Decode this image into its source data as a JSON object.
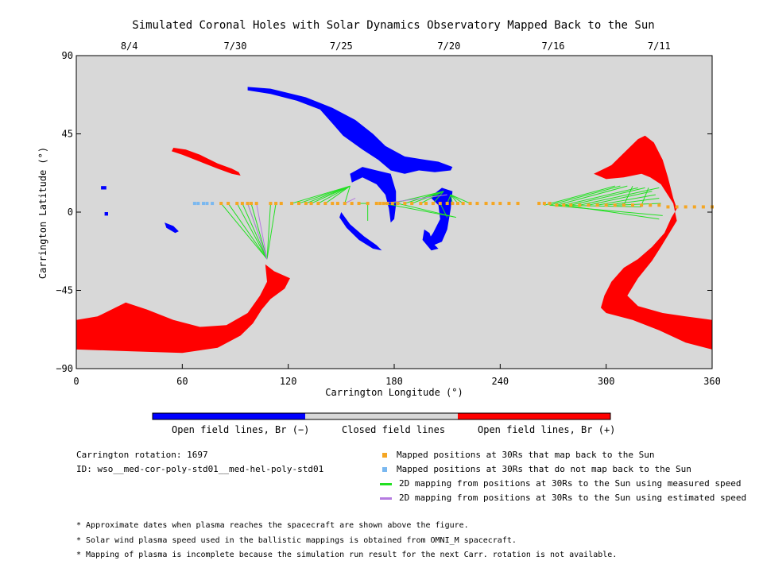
{
  "chart_data": {
    "type": "scatter",
    "title": "Simulated Coronal Holes with Solar Dynamics Observatory Mapped Back to the Sun",
    "xlabel": "Carrington Longitude (°)",
    "ylabel": "Carrington Latitude (°)",
    "xlim": [
      0,
      360
    ],
    "ylim": [
      -90,
      90
    ],
    "x_ticks": [
      0,
      60,
      120,
      180,
      240,
      300,
      360
    ],
    "y_ticks": [
      90,
      45,
      0,
      -45,
      -90
    ],
    "y_tick_labels": [
      "90",
      "45",
      "0",
      "−45",
      "−90"
    ],
    "top_axis_dates": [
      {
        "label": "8/4",
        "lon": 30
      },
      {
        "label": "7/30",
        "lon": 90
      },
      {
        "label": "7/25",
        "lon": 150
      },
      {
        "label": "7/20",
        "lon": 211
      },
      {
        "label": "7/16",
        "lon": 270
      },
      {
        "label": "7/11",
        "lon": 330
      }
    ],
    "background_color": "#d8d8d8",
    "region_colors": {
      "negative": "#0000ff",
      "positive": "#ff0000"
    },
    "regions": [
      {
        "polarity": "positive",
        "points": [
          [
            0,
            -62
          ],
          [
            12,
            -60
          ],
          [
            22,
            -55
          ],
          [
            28,
            -52
          ],
          [
            40,
            -56
          ],
          [
            55,
            -62
          ],
          [
            70,
            -66
          ],
          [
            85,
            -65
          ],
          [
            97,
            -58
          ],
          [
            104,
            -48
          ],
          [
            108,
            -40
          ],
          [
            107,
            -30
          ],
          [
            112,
            -34
          ],
          [
            121,
            -38
          ],
          [
            118,
            -44
          ],
          [
            110,
            -50
          ],
          [
            105,
            -56
          ],
          [
            100,
            -64
          ],
          [
            93,
            -71
          ],
          [
            80,
            -78
          ],
          [
            60,
            -81
          ],
          [
            30,
            -80
          ],
          [
            0,
            -79
          ]
        ]
      },
      {
        "polarity": "positive",
        "points": [
          [
            55,
            37
          ],
          [
            62,
            36
          ],
          [
            70,
            33
          ],
          [
            80,
            28
          ],
          [
            88,
            25
          ],
          [
            92,
            23
          ],
          [
            93,
            21
          ],
          [
            88,
            22
          ],
          [
            80,
            25
          ],
          [
            70,
            29
          ],
          [
            60,
            33
          ],
          [
            54,
            35
          ]
        ]
      },
      {
        "polarity": "positive",
        "points": [
          [
            293,
            22
          ],
          [
            303,
            27
          ],
          [
            311,
            35
          ],
          [
            318,
            42
          ],
          [
            322,
            44
          ],
          [
            327,
            40
          ],
          [
            332,
            30
          ],
          [
            335,
            20
          ],
          [
            338,
            8
          ],
          [
            340,
            2
          ],
          [
            337,
            -3
          ],
          [
            333,
            -12
          ],
          [
            326,
            -20
          ],
          [
            318,
            -27
          ],
          [
            310,
            -32
          ],
          [
            303,
            -40
          ],
          [
            299,
            -48
          ],
          [
            297,
            -55
          ],
          [
            300,
            -58
          ],
          [
            315,
            -62
          ],
          [
            330,
            -68
          ],
          [
            345,
            -75
          ],
          [
            360,
            -79
          ],
          [
            360,
            -62
          ],
          [
            345,
            -60
          ],
          [
            332,
            -58
          ],
          [
            318,
            -54
          ],
          [
            312,
            -48
          ],
          [
            318,
            -38
          ],
          [
            326,
            -28
          ],
          [
            331,
            -20
          ],
          [
            340,
            -5
          ],
          [
            338,
            5
          ],
          [
            331,
            16
          ],
          [
            325,
            20
          ],
          [
            320,
            22
          ],
          [
            310,
            20
          ],
          [
            300,
            19
          ]
        ]
      },
      {
        "polarity": "negative",
        "points": [
          [
            97,
            72
          ],
          [
            110,
            71
          ],
          [
            130,
            66
          ],
          [
            145,
            60
          ],
          [
            158,
            53
          ],
          [
            168,
            45
          ],
          [
            175,
            38
          ],
          [
            186,
            32
          ],
          [
            198,
            30
          ],
          [
            205,
            29
          ],
          [
            213,
            26
          ],
          [
            212,
            24
          ],
          [
            203,
            23
          ],
          [
            194,
            24
          ],
          [
            186,
            22
          ],
          [
            178,
            24
          ],
          [
            171,
            30
          ],
          [
            162,
            36
          ],
          [
            151,
            44
          ],
          [
            145,
            51
          ],
          [
            138,
            59
          ],
          [
            125,
            64
          ],
          [
            110,
            68
          ],
          [
            97,
            70
          ]
        ]
      },
      {
        "polarity": "negative",
        "points": [
          [
            155,
            22
          ],
          [
            162,
            26
          ],
          [
            170,
            24
          ],
          [
            178,
            22
          ],
          [
            181,
            12
          ],
          [
            181,
            4
          ],
          [
            180,
            -4
          ],
          [
            178,
            -6
          ],
          [
            177,
            2
          ],
          [
            175,
            10
          ],
          [
            170,
            16
          ],
          [
            162,
            20
          ],
          [
            156,
            17
          ]
        ]
      },
      {
        "polarity": "negative",
        "points": [
          [
            202,
            10
          ],
          [
            207,
            14
          ],
          [
            213,
            12
          ],
          [
            212,
            2
          ],
          [
            210,
            -10
          ],
          [
            207,
            -17
          ],
          [
            200,
            -20
          ],
          [
            198,
            -18
          ],
          [
            202,
            -12
          ],
          [
            206,
            -4
          ],
          [
            205,
            4
          ],
          [
            201,
            8
          ]
        ]
      },
      {
        "polarity": "negative",
        "points": [
          [
            150,
            0
          ],
          [
            155,
            -7
          ],
          [
            163,
            -14
          ],
          [
            170,
            -19
          ],
          [
            173,
            -22
          ],
          [
            168,
            -21
          ],
          [
            160,
            -16
          ],
          [
            153,
            -9
          ],
          [
            149,
            -3
          ]
        ]
      },
      {
        "polarity": "negative",
        "points": [
          [
            197,
            -10
          ],
          [
            200,
            -12
          ],
          [
            202,
            -18
          ],
          [
            205,
            -21
          ],
          [
            201,
            -22
          ],
          [
            196,
            -16
          ]
        ]
      },
      {
        "polarity": "negative",
        "points": [
          [
            14,
            15
          ],
          [
            17,
            15
          ],
          [
            17,
            13
          ],
          [
            14,
            13
          ]
        ]
      },
      {
        "polarity": "negative",
        "points": [
          [
            16,
            0
          ],
          [
            18,
            0
          ],
          [
            18,
            -2
          ],
          [
            16,
            -2
          ]
        ]
      },
      {
        "polarity": "negative",
        "points": [
          [
            50,
            -6
          ],
          [
            55,
            -8
          ],
          [
            58,
            -11
          ],
          [
            56,
            -12
          ],
          [
            51,
            -9
          ]
        ]
      }
    ],
    "series": [
      {
        "name": "Mapped positions at 30Rs that map back to the Sun",
        "color": "#f5a623",
        "x": [
          82,
          86,
          91,
          94,
          97,
          99,
          102,
          110,
          113,
          116,
          122,
          126,
          130,
          133,
          137,
          141,
          145,
          148,
          152,
          156,
          160,
          165,
          170,
          172,
          174,
          176,
          179,
          182,
          186,
          190,
          195,
          198,
          202,
          206,
          210,
          213,
          216,
          219,
          223,
          227,
          232,
          236,
          240,
          245,
          250,
          262,
          265,
          268,
          272,
          276,
          280,
          285,
          290,
          295,
          300,
          305,
          310,
          315,
          320,
          325,
          330,
          335,
          340,
          345,
          350,
          355,
          360
        ],
        "y": [
          5,
          5,
          5,
          5,
          5,
          5,
          5,
          5,
          5,
          5,
          5,
          5,
          5,
          5,
          5,
          5,
          5,
          5,
          5,
          5,
          5,
          5,
          5,
          5,
          5,
          5,
          5,
          5,
          5,
          5,
          5,
          5,
          5,
          5,
          5,
          5,
          5,
          5,
          5,
          5,
          5,
          5,
          5,
          5,
          5,
          5,
          5,
          5,
          4,
          4,
          4,
          4,
          4,
          4,
          4,
          4,
          4,
          4,
          4,
          4,
          4,
          3,
          3,
          3,
          3,
          3,
          3
        ]
      },
      {
        "name": "Mapped positions at 30Rs that do not map back to the Sun",
        "color": "#7ab8f0",
        "x": [
          67,
          69,
          72,
          74,
          77
        ],
        "y": [
          5,
          5,
          5,
          5,
          5
        ]
      },
      {
        "name": "2D mapping from positions at 30Rs to the Sun using measured speed",
        "color": "#22e022",
        "segments": [
          [
            82,
            5,
            108,
            -27
          ],
          [
            86,
            5,
            108,
            -27
          ],
          [
            91,
            5,
            108,
            -27
          ],
          [
            94,
            5,
            108,
            -27
          ],
          [
            97,
            5,
            108,
            -27
          ],
          [
            99,
            5,
            108,
            -27
          ],
          [
            110,
            5,
            108,
            -27
          ],
          [
            113,
            5,
            108,
            -27
          ],
          [
            122,
            5,
            155,
            15
          ],
          [
            126,
            5,
            155,
            15
          ],
          [
            130,
            5,
            155,
            15
          ],
          [
            133,
            5,
            155,
            15
          ],
          [
            137,
            5,
            155,
            15
          ],
          [
            141,
            5,
            155,
            15
          ],
          [
            152,
            5,
            155,
            15
          ],
          [
            160,
            5,
            165,
            5
          ],
          [
            165,
            5,
            165,
            -5
          ],
          [
            179,
            5,
            208,
            12
          ],
          [
            186,
            5,
            208,
            12
          ],
          [
            190,
            5,
            208,
            12
          ],
          [
            195,
            5,
            208,
            12
          ],
          [
            202,
            5,
            208,
            12
          ],
          [
            210,
            5,
            212,
            10
          ],
          [
            213,
            5,
            212,
            10
          ],
          [
            216,
            5,
            212,
            10
          ],
          [
            219,
            5,
            212,
            10
          ],
          [
            223,
            5,
            212,
            10
          ],
          [
            206,
            5,
            210,
            -3
          ],
          [
            182,
            5,
            215,
            -3
          ],
          [
            174,
            5,
            215,
            -3
          ],
          [
            265,
            4,
            305,
            15
          ],
          [
            268,
            4,
            308,
            15
          ],
          [
            272,
            4,
            312,
            15
          ],
          [
            276,
            4,
            318,
            14
          ],
          [
            280,
            4,
            322,
            14
          ],
          [
            285,
            4,
            330,
            14
          ],
          [
            290,
            4,
            326,
            12
          ],
          [
            295,
            4,
            328,
            10
          ],
          [
            300,
            4,
            330,
            8
          ],
          [
            305,
            4,
            331,
            5
          ],
          [
            272,
            4,
            320,
            3
          ],
          [
            268,
            4,
            332,
            -2
          ],
          [
            276,
            4,
            330,
            -4
          ],
          [
            310,
            4,
            315,
            15
          ],
          [
            320,
            4,
            324,
            14
          ]
        ]
      },
      {
        "name": "2D mapping from positions at 30Rs to the Sun using estimated speed",
        "color": "#b57be0",
        "segments": [
          [
            97,
            5,
            108,
            -27
          ],
          [
            102,
            5,
            108,
            -27
          ],
          [
            152,
            5,
            158,
            8
          ],
          [
            174,
            5,
            210,
            10
          ]
        ]
      }
    ],
    "colorbar": {
      "colors": [
        "#0000ff",
        "#d8d8d8",
        "#ff0000"
      ],
      "labels": [
        "Open field lines, Br (−)",
        "Closed field lines",
        "Open field lines, Br (+)"
      ]
    },
    "legend_placement": "bottom-right"
  },
  "info": {
    "carrington_rotation": "Carrington rotation: 1697",
    "run_id": "ID: wso__med-cor-poly-std01__med-hel-poly-std01"
  },
  "notes": [
    "* Approximate dates when plasma reaches the spacecraft are shown above the figure.",
    "* Solar wind plasma speed used in the ballistic mappings is obtained from OMNI_M spacecraft.",
    "* Mapping of plasma is incomplete because the simulation run result for the next Carr. rotation is not available."
  ]
}
